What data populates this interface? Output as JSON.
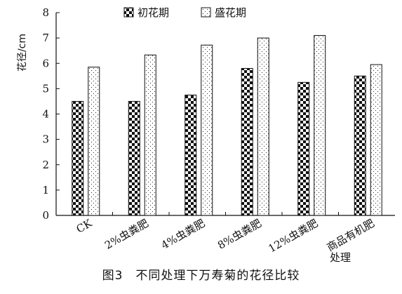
{
  "chart_data": {
    "type": "bar",
    "title": "图3　不同处理下万寿菊的花径比较",
    "xlabel": "处理",
    "ylabel": "花径/cm",
    "ylim": [
      0,
      8
    ],
    "yticks": [
      "0",
      "1",
      "2",
      "3",
      "4",
      "5",
      "6",
      "7",
      "8"
    ],
    "grid": false,
    "legend_position": "top",
    "categories": [
      "CK",
      "2%虫粪肥",
      "4%虫粪肥",
      "8%虫粪肥",
      "12%虫粪肥",
      "商品有机肥"
    ],
    "series": [
      {
        "name": "初花期",
        "pattern": "checker",
        "values": [
          4.5,
          4.5,
          4.75,
          5.8,
          5.25,
          5.5
        ]
      },
      {
        "name": "盛花期",
        "pattern": "dots",
        "values": [
          5.85,
          6.33,
          6.72,
          7.0,
          7.1,
          5.95
        ]
      }
    ],
    "colors": {
      "ink": "#111111",
      "fill_light": "#ffffff"
    }
  }
}
